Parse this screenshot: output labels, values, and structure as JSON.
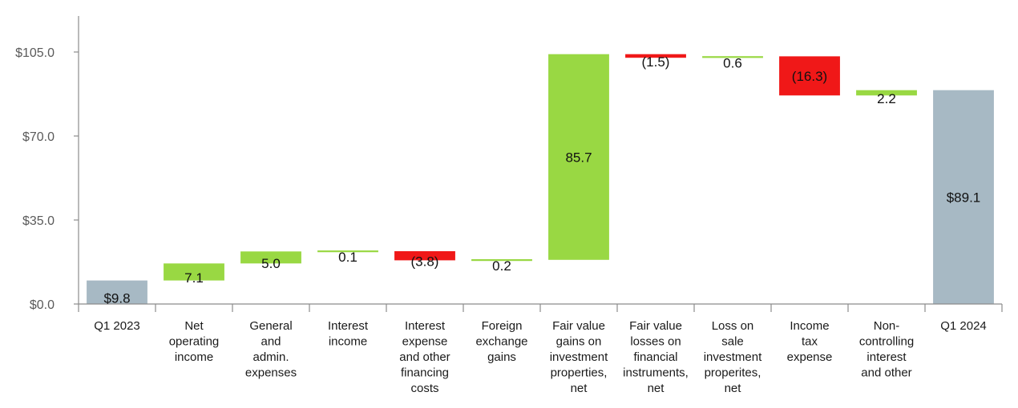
{
  "chart_data": {
    "type": "bar",
    "subtype": "waterfall",
    "title": "",
    "xlabel": "",
    "ylabel": "",
    "ylim": [
      0,
      120
    ],
    "yticks": [
      0,
      35,
      70,
      105
    ],
    "ytick_labels": [
      "$0.0",
      "$35.0",
      "$70.0",
      "$105.0"
    ],
    "grid": false,
    "colors": {
      "total": "#a7b9c4",
      "increase": "#99d843",
      "decrease": "#f01818",
      "axis": "#8c8c8c"
    },
    "categories": [
      [
        "Q1 2023"
      ],
      [
        "Net",
        "operating",
        "income"
      ],
      [
        "General",
        "and",
        "admin.",
        "expenses"
      ],
      [
        "Interest",
        "income"
      ],
      [
        "Interest",
        "expense",
        "and other",
        "financing",
        "costs"
      ],
      [
        "Foreign",
        "exchange",
        "gains"
      ],
      [
        "Fair value",
        "gains on",
        "investment",
        "properties,",
        "net"
      ],
      [
        "Fair value",
        "losses on",
        "financial",
        "instruments,",
        "net"
      ],
      [
        "Loss on",
        "sale",
        "investment",
        "properites,",
        "net"
      ],
      [
        "Income",
        "tax",
        "expense"
      ],
      [
        "Non-",
        "controlling",
        "interest",
        "and other"
      ],
      [
        "Q1 2024"
      ]
    ],
    "steps": [
      {
        "kind": "total",
        "value": 9.8,
        "label": "$9.8"
      },
      {
        "kind": "increase",
        "value": 7.1,
        "label": "7.1"
      },
      {
        "kind": "increase",
        "value": 5.0,
        "label": "5.0"
      },
      {
        "kind": "increase",
        "value": 0.1,
        "label": "0.1"
      },
      {
        "kind": "decrease",
        "value": -3.8,
        "label": "(3.8)"
      },
      {
        "kind": "increase",
        "value": 0.2,
        "label": "0.2"
      },
      {
        "kind": "increase",
        "value": 85.7,
        "label": "85.7"
      },
      {
        "kind": "decrease",
        "value": -1.5,
        "label": "(1.5)"
      },
      {
        "kind": "increase",
        "value": 0.6,
        "label": "0.6"
      },
      {
        "kind": "decrease",
        "value": -16.3,
        "label": "(16.3)"
      },
      {
        "kind": "increase",
        "value": 2.2,
        "label": "2.2"
      },
      {
        "kind": "total",
        "value": 89.1,
        "label": "$89.1"
      }
    ]
  }
}
